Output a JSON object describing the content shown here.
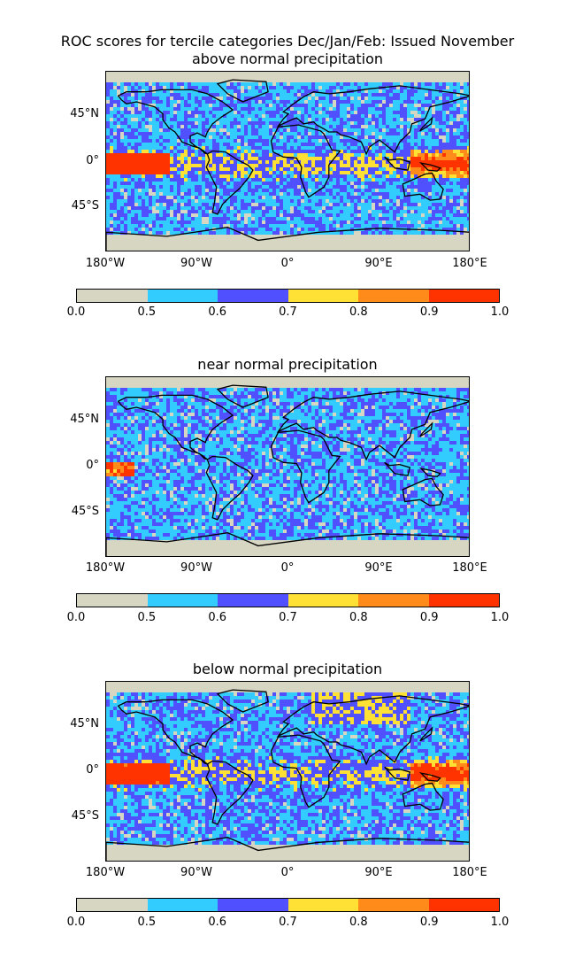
{
  "figure": {
    "title_line1": "ROC scores for tercile categories Dec/Jan/Feb: Issued November"
  },
  "axes": {
    "x_tick_labels": [
      "180°W",
      "90°W",
      "0°",
      "90°E",
      "180°E"
    ],
    "y_tick_labels": [
      "45°N",
      "0°",
      "45°S"
    ]
  },
  "colorbar": {
    "tick_labels": [
      "0.0",
      "0.5",
      "0.6",
      "0.7",
      "0.8",
      "0.9",
      "1.0"
    ],
    "bins": [
      {
        "range": "0.0-0.5",
        "color": "#d6d6c2"
      },
      {
        "range": "0.5-0.6",
        "color": "#33ccff"
      },
      {
        "range": "0.6-0.7",
        "color": "#5050ff"
      },
      {
        "range": "0.7-0.8",
        "color": "#ffe135"
      },
      {
        "range": "0.8-0.9",
        "color": "#ff8c1a"
      },
      {
        "range": "0.9-1.0",
        "color": "#ff3300"
      }
    ]
  },
  "panels": [
    {
      "subtitle": "above normal precipitation"
    },
    {
      "subtitle": "near normal precipitation"
    },
    {
      "subtitle": "below normal precipitation"
    }
  ]
}
